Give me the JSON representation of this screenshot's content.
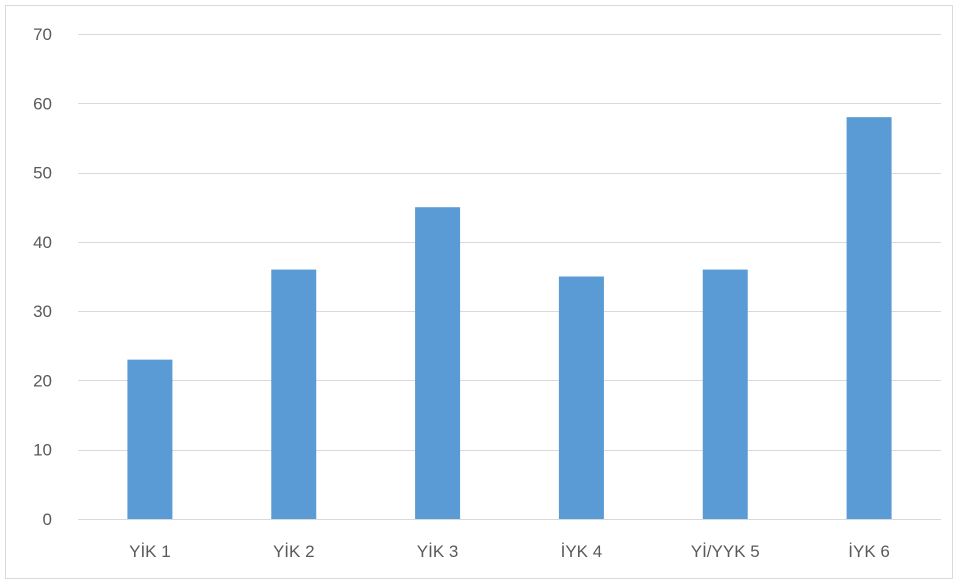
{
  "chart_data": {
    "type": "bar",
    "title": "",
    "xlabel": "",
    "ylabel": "",
    "categories": [
      "YİK 1",
      "YİK 2",
      "YİK 3",
      "İYK 4",
      "Yİ/YYK 5",
      "İYK 6"
    ],
    "values": [
      23,
      36,
      45,
      35,
      36,
      58
    ],
    "ylim": [
      0,
      70
    ],
    "yticks": [
      0,
      10,
      20,
      30,
      40,
      50,
      60,
      70
    ],
    "grid": true,
    "legend": "none",
    "bar_color": "#5b9bd5",
    "grid_color": "#d9d9d9",
    "tick_label_color": "#595959"
  }
}
